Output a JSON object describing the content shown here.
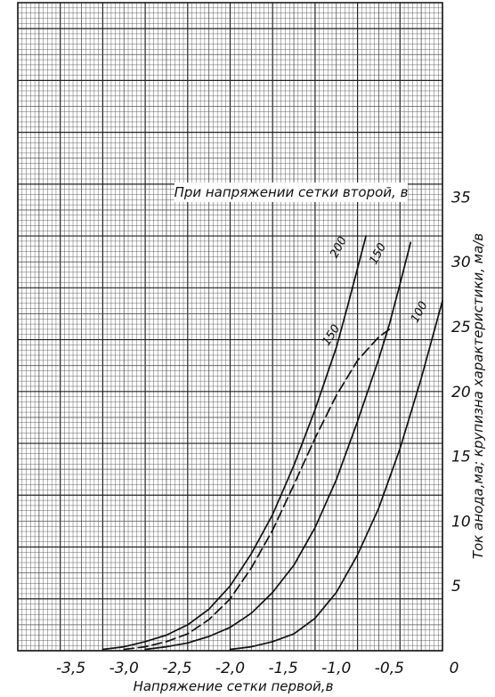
{
  "chart_data": {
    "type": "line",
    "title": "",
    "xlabel": "Напряжение сетки первой,в",
    "ylabel": "Ток анода,ма; крупизна характеристики, ма/в",
    "xlim": [
      -4.0,
      0.0
    ],
    "ylim": [
      0,
      50
    ],
    "grid": true,
    "x_ticks": [
      {
        "value": -3.5,
        "label": "-3,5"
      },
      {
        "value": -3.0,
        "label": "-3,0"
      },
      {
        "value": -2.5,
        "label": "-2,5"
      },
      {
        "value": -2.0,
        "label": "-2,0"
      },
      {
        "value": -1.5,
        "label": "-1,5"
      },
      {
        "value": -1.0,
        "label": "-1,0"
      },
      {
        "value": -0.5,
        "label": "-0,5"
      },
      {
        "value": 0.0,
        "label": "0"
      }
    ],
    "y_ticks": [
      {
        "value": 5,
        "label": "5"
      },
      {
        "value": 10,
        "label": "10"
      },
      {
        "value": 15,
        "label": "15"
      },
      {
        "value": 20,
        "label": "20"
      },
      {
        "value": 25,
        "label": "25"
      },
      {
        "value": 30,
        "label": "30"
      },
      {
        "value": 35,
        "label": "35"
      }
    ],
    "legend_title": "При напряжении сетки второй, в",
    "series": [
      {
        "name": "200",
        "style": "solid",
        "x": [
          -3.2,
          -3.0,
          -2.8,
          -2.6,
          -2.4,
          -2.2,
          -2.0,
          -1.8,
          -1.6,
          -1.4,
          -1.2,
          -1.0,
          -0.9,
          -0.8,
          -0.72
        ],
        "y": [
          0.1,
          0.3,
          0.7,
          1.2,
          2.0,
          3.2,
          5.0,
          7.5,
          10.5,
          14.3,
          18.6,
          23.4,
          26.4,
          29.5,
          32.0
        ]
      },
      {
        "name": "150",
        "style": "solid",
        "x": [
          -2.8,
          -2.6,
          -2.4,
          -2.2,
          -2.0,
          -1.8,
          -1.6,
          -1.4,
          -1.2,
          -1.0,
          -0.8,
          -0.6,
          -0.5,
          -0.4,
          -0.3
        ],
        "y": [
          0.1,
          0.3,
          0.6,
          1.1,
          1.8,
          2.9,
          4.5,
          6.6,
          9.5,
          13.2,
          17.7,
          22.5,
          25.2,
          28.3,
          31.5
        ]
      },
      {
        "name": "100",
        "style": "solid",
        "x": [
          -2.0,
          -1.8,
          -1.6,
          -1.4,
          -1.2,
          -1.0,
          -0.8,
          -0.6,
          -0.4,
          -0.2,
          0.0
        ],
        "y": [
          0.1,
          0.3,
          0.7,
          1.3,
          2.5,
          4.5,
          7.4,
          11.0,
          15.6,
          21.0,
          27.0
        ]
      },
      {
        "name": "150",
        "style": "dashed",
        "x": [
          -3.0,
          -2.8,
          -2.6,
          -2.4,
          -2.2,
          -2.0,
          -1.8,
          -1.6,
          -1.4,
          -1.2,
          -1.0,
          -0.8,
          -0.6,
          -0.5
        ],
        "y": [
          0.1,
          0.3,
          0.7,
          1.3,
          2.4,
          4.0,
          6.4,
          9.3,
          12.8,
          16.4,
          19.7,
          22.4,
          24.2,
          24.8
        ]
      }
    ],
    "annotations": [
      {
        "text": "200",
        "x": -0.95,
        "y": 31.0,
        "rotate": -62
      },
      {
        "text": "150",
        "x": -0.58,
        "y": 30.5,
        "rotate": -62
      },
      {
        "text": "100",
        "x": -0.19,
        "y": 26.0,
        "rotate": -62
      },
      {
        "text": "150",
        "x": -1.02,
        "y": 24.2,
        "rotate": -58
      }
    ],
    "colors": {
      "line": "#111111",
      "grid_minor": "#555555",
      "grid_major": "#222222",
      "background": "#ffffff"
    }
  }
}
